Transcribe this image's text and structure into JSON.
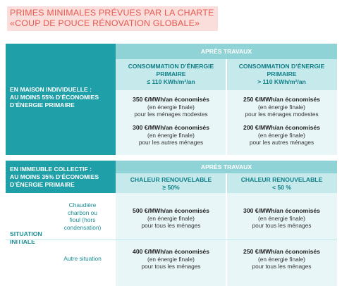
{
  "title": {
    "line1": "PRIMES MINIMALES PRÉVUES PAR LA CHARTE",
    "line2": "«COUP DE POUCE RÉNOVATION GLOBALE»"
  },
  "table1": {
    "row_label": [
      "EN MAISON INDIVIDUELLE :",
      "AU MOINS 55% D’ÉCONOMIES",
      "D’ÉNERGIE PRIMAIRE"
    ],
    "after_works": "APRÈS TRAVAUX",
    "col_left": [
      "CONSOMMATION D’ÉNERGIE",
      "PRIMAIRE",
      "≤ 110 KWh/m²/an"
    ],
    "col_right": [
      "CONSOMMATION D’ÉNERGIE",
      "PRIMAIRE",
      "> 110 KWh/m²/an"
    ],
    "cells": [
      {
        "amount": "350 €/MWh/an économisés",
        "note": "(en énergie finale)",
        "who": "pour les ménages modestes"
      },
      {
        "amount": "250 €/MWh/an économisés",
        "note": "(en énergie finale)",
        "who": "pour les ménages modestes"
      },
      {
        "amount": "300 €/MWh/an économisés",
        "note": "(en énergie finale)",
        "who": "pour les autres ménages"
      },
      {
        "amount": "200 €/MWh/an économisés",
        "note": "(en énergie finale)",
        "who": "pour les autres ménages"
      }
    ]
  },
  "table2": {
    "row_label": [
      "EN IMMEUBLE COLLECTIF :",
      "AU MOINS 35% D’ÉCONOMIES",
      "D’ÉNERGIE PRIMAIRE"
    ],
    "after_works": "APRÈS TRAVAUX",
    "col_left": [
      "CHALEUR RENOUVELABLE",
      "≥ 50%"
    ],
    "col_right": [
      "CHALEUR RENOUVELABLE",
      "< 50 %"
    ],
    "situation": [
      "SITUATION",
      "INITIALE"
    ],
    "sub1": [
      "Chaudière",
      "charbon ou",
      "fioul (hors",
      "condensation)"
    ],
    "sub2": "Autre situation",
    "cells": [
      {
        "amount": "500 €/MWh/an économisés",
        "note": "(en énergie finale)",
        "who": "pour tous les ménages"
      },
      {
        "amount": "300 €/MWh/an économisés",
        "note": "(en énergie finale)",
        "who": "pour tous les ménages"
      },
      {
        "amount": "400 €/MWh/an économisés",
        "note": "(en énergie finale)",
        "who": "pour tous les ménages"
      },
      {
        "amount": "250 €/MWh/an économisés",
        "note": "(en énergie finale)",
        "who": "pour tous les ménages"
      }
    ]
  }
}
